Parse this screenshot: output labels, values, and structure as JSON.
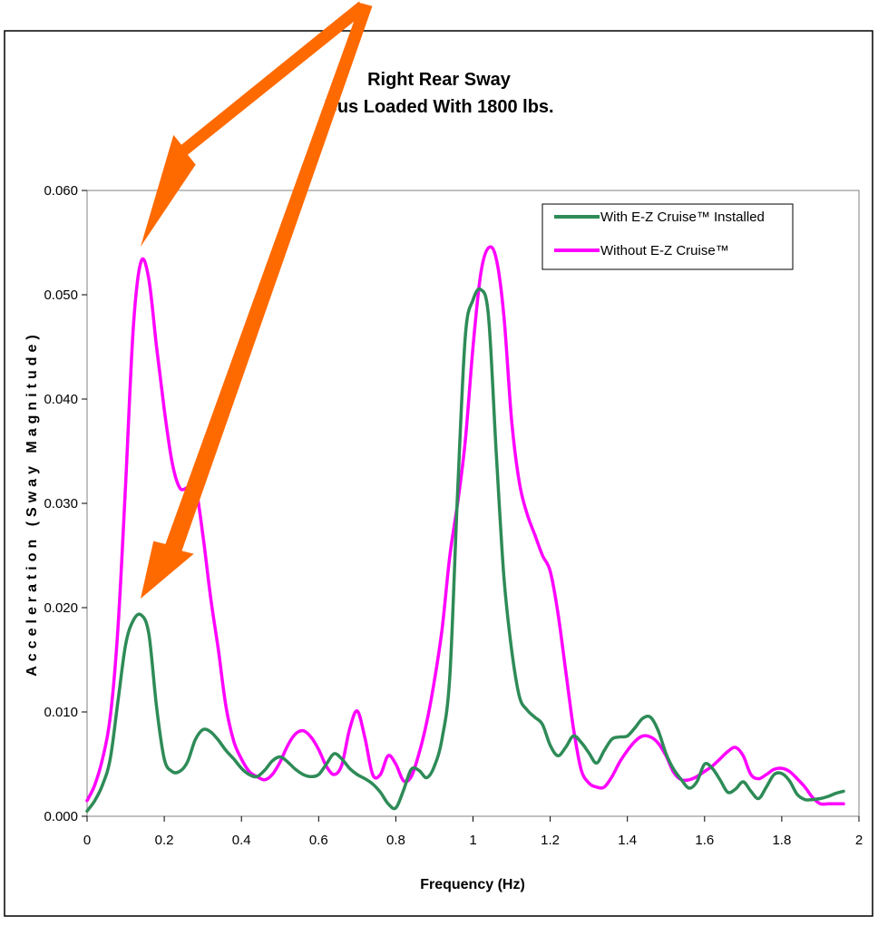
{
  "colors": {
    "series_green": "#2e8b57",
    "series_magenta": "#ff00ff",
    "arrow": "#ff6a00",
    "plot_border": "#808080",
    "frame": "#000000"
  },
  "chart_data": {
    "type": "line",
    "title": "Right Rear Sway",
    "subtitle": "Bus Loaded With 1800 lbs.",
    "xlabel": "Frequency (Hz)",
    "ylabel": "Acceleration (Sway Magnitude)",
    "xlim": [
      0,
      2
    ],
    "ylim": [
      0,
      0.06
    ],
    "x_ticks": [
      "0",
      "0.2",
      "0.4",
      "0.6",
      "0.8",
      "1",
      "1.2",
      "1.4",
      "1.6",
      "1.8",
      "2"
    ],
    "y_ticks": [
      "0.000",
      "0.010",
      "0.020",
      "0.030",
      "0.040",
      "0.050",
      "0.060"
    ],
    "grid": false,
    "legend_position": "top-right",
    "annotations": [
      "arrow to magenta peak near 0.15 Hz",
      "arrow to green peak near 0.13 Hz"
    ],
    "series": [
      {
        "name": "With E-Z Cruise™  Installed",
        "color": "#2e8b57",
        "x": [
          0.0,
          0.02,
          0.04,
          0.06,
          0.08,
          0.1,
          0.12,
          0.14,
          0.16,
          0.18,
          0.2,
          0.22,
          0.24,
          0.26,
          0.28,
          0.3,
          0.32,
          0.34,
          0.36,
          0.38,
          0.4,
          0.42,
          0.44,
          0.46,
          0.48,
          0.5,
          0.52,
          0.54,
          0.56,
          0.58,
          0.6,
          0.62,
          0.64,
          0.66,
          0.68,
          0.7,
          0.72,
          0.74,
          0.76,
          0.78,
          0.8,
          0.82,
          0.84,
          0.86,
          0.88,
          0.9,
          0.92,
          0.94,
          0.96,
          0.98,
          1.0,
          1.02,
          1.04,
          1.06,
          1.08,
          1.1,
          1.12,
          1.14,
          1.16,
          1.18,
          1.2,
          1.22,
          1.24,
          1.26,
          1.28,
          1.3,
          1.32,
          1.34,
          1.36,
          1.38,
          1.4,
          1.42,
          1.44,
          1.46,
          1.48,
          1.5,
          1.52,
          1.54,
          1.56,
          1.58,
          1.6,
          1.62,
          1.64,
          1.66,
          1.68,
          1.7,
          1.72,
          1.74,
          1.76,
          1.78,
          1.8,
          1.82,
          1.84,
          1.86,
          1.88,
          1.9,
          1.92,
          1.94,
          1.96
        ],
        "values": [
          0.0005,
          0.0015,
          0.003,
          0.0055,
          0.011,
          0.0165,
          0.0188,
          0.0193,
          0.0175,
          0.0105,
          0.0055,
          0.0043,
          0.0043,
          0.0052,
          0.0073,
          0.0083,
          0.0081,
          0.0073,
          0.0063,
          0.0055,
          0.0046,
          0.004,
          0.0038,
          0.0044,
          0.0053,
          0.0057,
          0.0052,
          0.0045,
          0.004,
          0.0038,
          0.004,
          0.005,
          0.006,
          0.0055,
          0.0046,
          0.004,
          0.0036,
          0.0031,
          0.0023,
          0.0012,
          0.0008,
          0.0025,
          0.0045,
          0.0044,
          0.0037,
          0.0048,
          0.0075,
          0.0135,
          0.031,
          0.046,
          0.0495,
          0.0505,
          0.048,
          0.035,
          0.023,
          0.016,
          0.0115,
          0.0102,
          0.0095,
          0.0088,
          0.0068,
          0.0058,
          0.0066,
          0.0077,
          0.0071,
          0.0061,
          0.0051,
          0.0063,
          0.0074,
          0.0076,
          0.0077,
          0.0085,
          0.0094,
          0.0095,
          0.0082,
          0.006,
          0.0045,
          0.0035,
          0.0027,
          0.0033,
          0.005,
          0.0046,
          0.0035,
          0.0023,
          0.0026,
          0.0033,
          0.0024,
          0.0017,
          0.0028,
          0.004,
          0.0041,
          0.0034,
          0.0021,
          0.0016,
          0.0016,
          0.0017,
          0.0019,
          0.0022,
          0.0024
        ]
      },
      {
        "name": "Without E-Z Cruise™",
        "color": "#ff00ff",
        "x": [
          0.0,
          0.02,
          0.04,
          0.06,
          0.08,
          0.1,
          0.12,
          0.14,
          0.16,
          0.18,
          0.2,
          0.22,
          0.24,
          0.26,
          0.28,
          0.3,
          0.32,
          0.34,
          0.36,
          0.38,
          0.4,
          0.42,
          0.44,
          0.46,
          0.48,
          0.5,
          0.52,
          0.54,
          0.56,
          0.58,
          0.6,
          0.62,
          0.64,
          0.66,
          0.68,
          0.7,
          0.72,
          0.74,
          0.76,
          0.78,
          0.8,
          0.82,
          0.84,
          0.86,
          0.88,
          0.9,
          0.92,
          0.94,
          0.96,
          0.98,
          1.0,
          1.02,
          1.04,
          1.06,
          1.08,
          1.1,
          1.12,
          1.14,
          1.16,
          1.18,
          1.2,
          1.22,
          1.24,
          1.26,
          1.28,
          1.3,
          1.32,
          1.34,
          1.36,
          1.38,
          1.4,
          1.42,
          1.44,
          1.46,
          1.48,
          1.5,
          1.52,
          1.54,
          1.56,
          1.58,
          1.6,
          1.62,
          1.64,
          1.66,
          1.68,
          1.7,
          1.72,
          1.74,
          1.76,
          1.78,
          1.8,
          1.82,
          1.84,
          1.86,
          1.88,
          1.9,
          1.92,
          1.94,
          1.96
        ],
        "values": [
          0.0015,
          0.003,
          0.0055,
          0.0095,
          0.018,
          0.032,
          0.047,
          0.0532,
          0.0515,
          0.045,
          0.039,
          0.034,
          0.0315,
          0.0315,
          0.0317,
          0.027,
          0.021,
          0.016,
          0.0105,
          0.0072,
          0.0055,
          0.0043,
          0.0038,
          0.0035,
          0.004,
          0.0052,
          0.0068,
          0.0079,
          0.0082,
          0.0076,
          0.0064,
          0.0048,
          0.004,
          0.0049,
          0.0083,
          0.0101,
          0.0075,
          0.004,
          0.004,
          0.0058,
          0.005,
          0.0034,
          0.0038,
          0.006,
          0.009,
          0.013,
          0.018,
          0.025,
          0.03,
          0.036,
          0.045,
          0.052,
          0.0545,
          0.0535,
          0.048,
          0.038,
          0.032,
          0.029,
          0.027,
          0.025,
          0.0235,
          0.0195,
          0.014,
          0.0085,
          0.0045,
          0.0032,
          0.0028,
          0.0028,
          0.0038,
          0.0052,
          0.0063,
          0.0072,
          0.0077,
          0.0076,
          0.007,
          0.0058,
          0.0042,
          0.0035,
          0.0035,
          0.0038,
          0.0043,
          0.0048,
          0.0055,
          0.0062,
          0.0066,
          0.0058,
          0.004,
          0.0036,
          0.004,
          0.0045,
          0.0046,
          0.0043,
          0.0036,
          0.0028,
          0.0018,
          0.0012,
          0.0012,
          0.0012,
          0.0012
        ]
      }
    ]
  }
}
